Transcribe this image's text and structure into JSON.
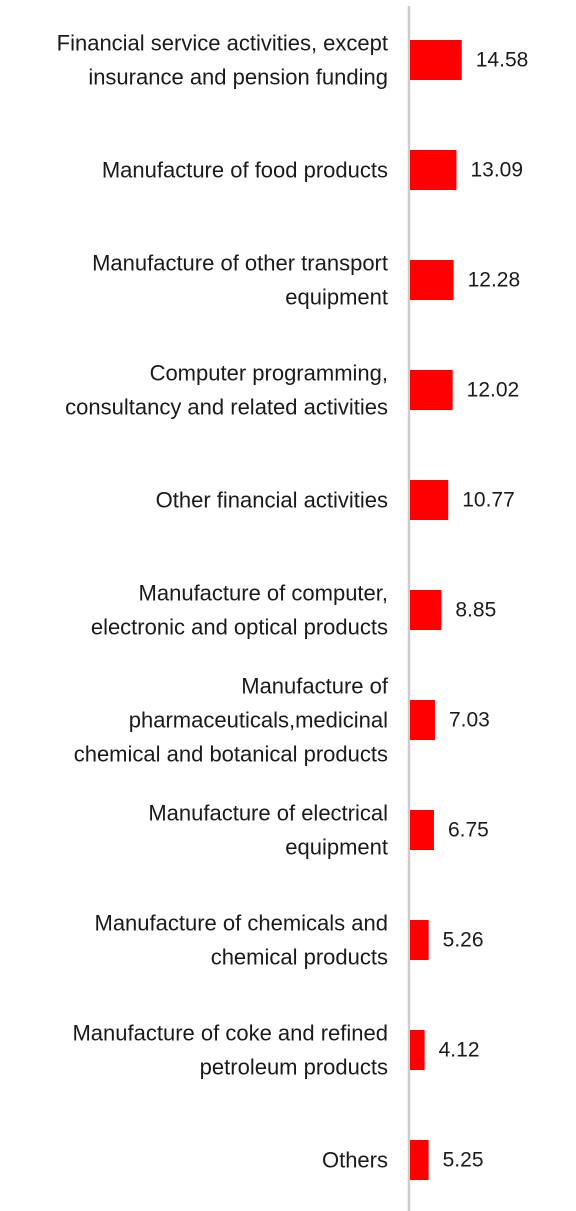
{
  "chart_data": {
    "type": "bar",
    "orientation": "horizontal",
    "title": "",
    "xlabel": "",
    "ylabel": "",
    "grid": false,
    "legend": "none",
    "bar_color": "#ff0000",
    "axis_color": "#cccccc",
    "categories": [
      [
        "Financial service activities, except",
        "insurance and pension funding"
      ],
      [
        "Manufacture of food products"
      ],
      [
        "Manufacture of other transport",
        "equipment"
      ],
      [
        "Computer programming,",
        "consultancy and related activities"
      ],
      [
        "Other financial activities"
      ],
      [
        "Manufacture of computer,",
        "electronic and optical products"
      ],
      [
        "Manufacture of",
        "pharmaceuticals,medicinal",
        "chemical and botanical products"
      ],
      [
        "Manufacture of electrical",
        "equipment"
      ],
      [
        "Manufacture of chemicals and",
        "chemical products"
      ],
      [
        "Manufacture of coke and refined",
        "petroleum products"
      ],
      [
        "Others"
      ]
    ],
    "values": [
      14.58,
      13.09,
      12.28,
      12.02,
      10.77,
      8.85,
      7.03,
      6.75,
      5.26,
      4.12,
      5.25
    ],
    "value_labels": [
      "14.58",
      "13.09",
      "12.28",
      "12.02",
      "10.77",
      "8.85",
      "7.03",
      "6.75",
      "5.26",
      "4.12",
      "5.25"
    ]
  }
}
